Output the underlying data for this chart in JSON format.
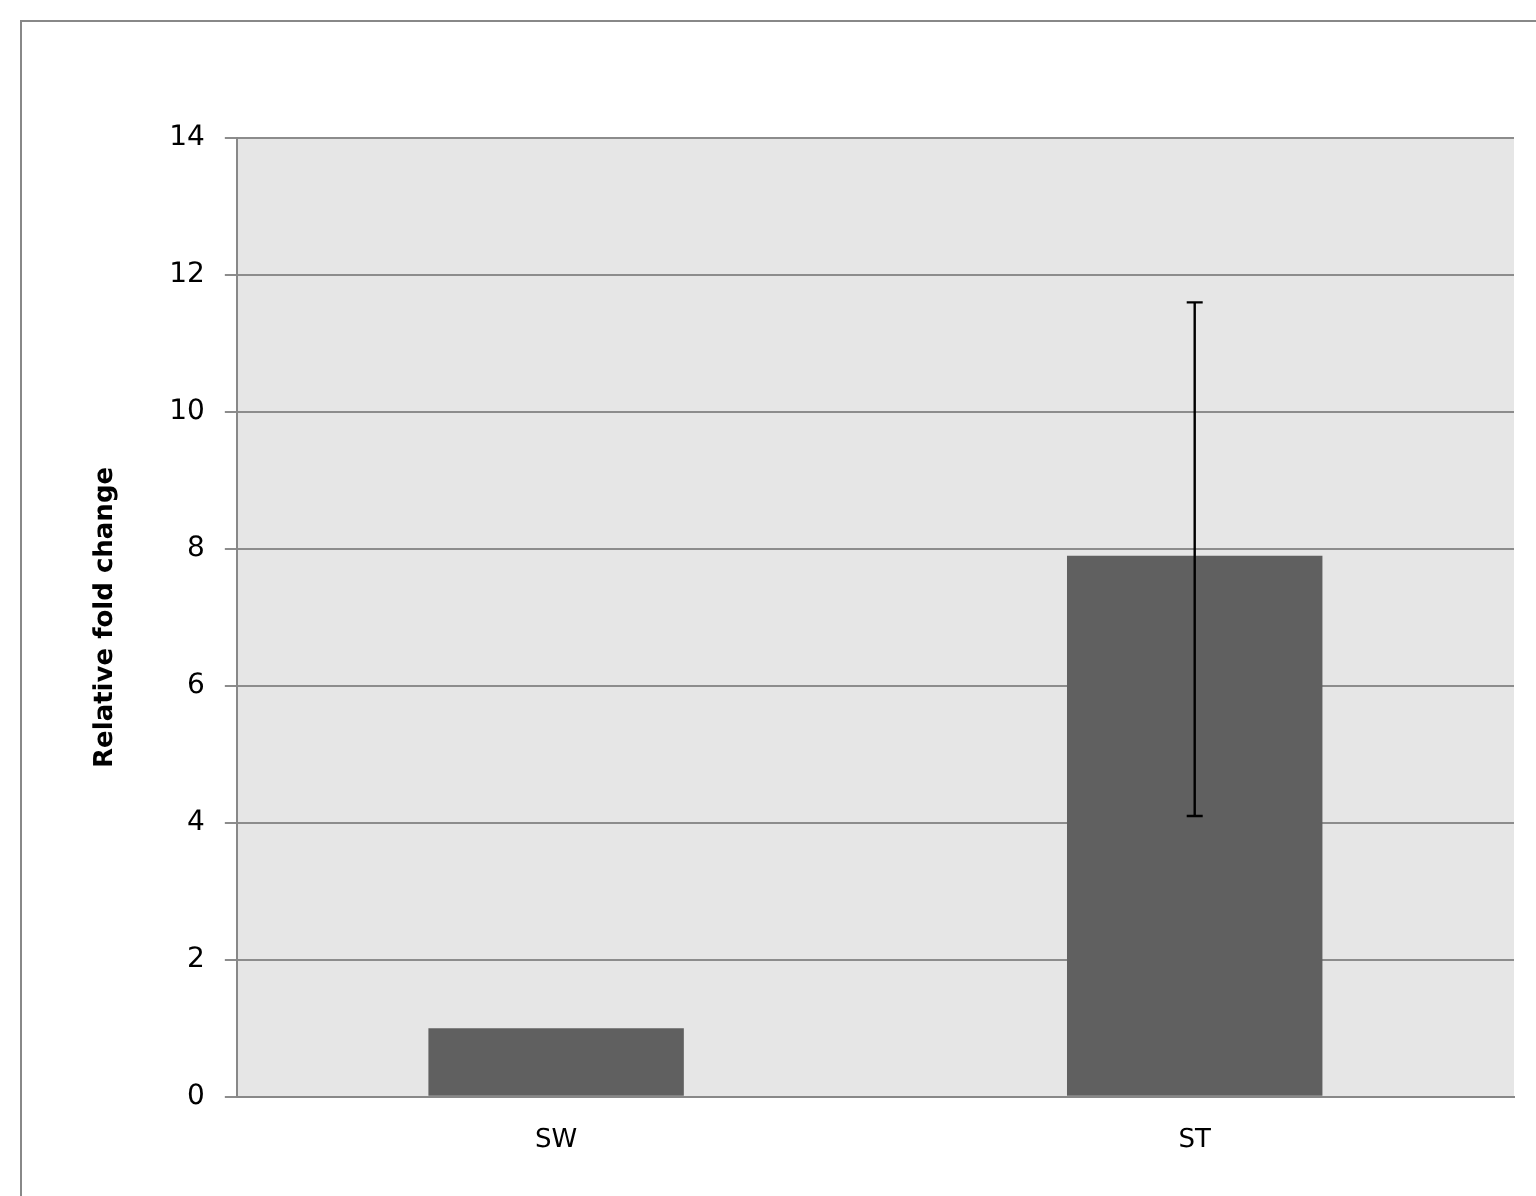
{
  "chart_data": {
    "type": "bar",
    "ylabel": "Relative fold change",
    "categories": [
      "SW",
      "ST"
    ],
    "values": [
      1,
      7.9
    ],
    "errors": [
      null,
      [
        4.1,
        11.6
      ]
    ],
    "color": "#606060",
    "ylim": [
      0,
      14
    ],
    "yticks": [
      0,
      2,
      4,
      6,
      8,
      10,
      12,
      14
    ],
    "grid": "y"
  }
}
